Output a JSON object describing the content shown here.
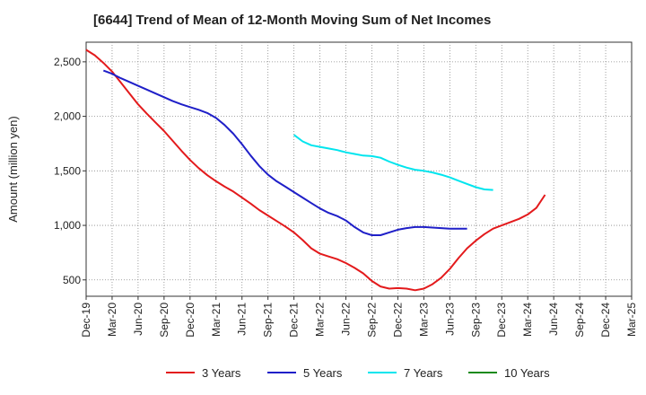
{
  "chart_data": {
    "type": "line",
    "title": "[6644]  Trend of Mean of 12-Month Moving Sum of Net Incomes",
    "xlabel": "",
    "ylabel": "Amount (million yen)",
    "ylim": [
      350,
      2680
    ],
    "yticks": [
      500,
      1000,
      1500,
      2000,
      2500
    ],
    "ytick_labels": [
      "500",
      "1,000",
      "1,500",
      "2,000",
      "2,500"
    ],
    "x_tick_labels": [
      "Dec-19",
      "Mar-20",
      "Jun-20",
      "Sep-20",
      "Dec-20",
      "Mar-21",
      "Jun-21",
      "Sep-21",
      "Dec-21",
      "Mar-22",
      "Jun-22",
      "Sep-22",
      "Dec-22",
      "Mar-23",
      "Jun-23",
      "Sep-23",
      "Dec-23",
      "Mar-24",
      "Jun-24",
      "Sep-24",
      "Dec-24",
      "Mar-25"
    ],
    "grid": true,
    "legend_position": "bottom",
    "series": [
      {
        "name": "3 Years",
        "color": "#e31a1c",
        "start_index": 0,
        "values": [
          2610,
          2560,
          2490,
          2410,
          2310,
          2210,
          2110,
          2025,
          1945,
          1865,
          1775,
          1685,
          1600,
          1525,
          1460,
          1405,
          1355,
          1310,
          1255,
          1200,
          1140,
          1090,
          1040,
          990,
          935,
          865,
          790,
          740,
          715,
          690,
          655,
          610,
          560,
          490,
          440,
          420,
          425,
          420,
          405,
          420,
          460,
          520,
          600,
          700,
          790,
          860,
          920,
          970,
          1000,
          1030,
          1060,
          1100,
          1160,
          1280
        ]
      },
      {
        "name": "5 Years",
        "color": "#1f1fc8",
        "start_index": 2,
        "values": [
          2420,
          2390,
          2350,
          2315,
          2280,
          2245,
          2210,
          2175,
          2140,
          2110,
          2085,
          2060,
          2030,
          1985,
          1920,
          1840,
          1745,
          1640,
          1545,
          1465,
          1405,
          1355,
          1305,
          1255,
          1205,
          1155,
          1115,
          1085,
          1045,
          985,
          935,
          910,
          910,
          935,
          960,
          975,
          985,
          985,
          980,
          975,
          970,
          970,
          970
        ]
      },
      {
        "name": "7 Years",
        "color": "#00e5ee",
        "start_index": 24,
        "values": [
          1830,
          1770,
          1735,
          1720,
          1705,
          1690,
          1670,
          1655,
          1640,
          1635,
          1620,
          1585,
          1555,
          1530,
          1510,
          1500,
          1485,
          1465,
          1440,
          1410,
          1380,
          1350,
          1330,
          1325
        ]
      },
      {
        "name": "10 Years",
        "color": "#1a8a1a",
        "start_index": 0,
        "values": []
      }
    ]
  }
}
